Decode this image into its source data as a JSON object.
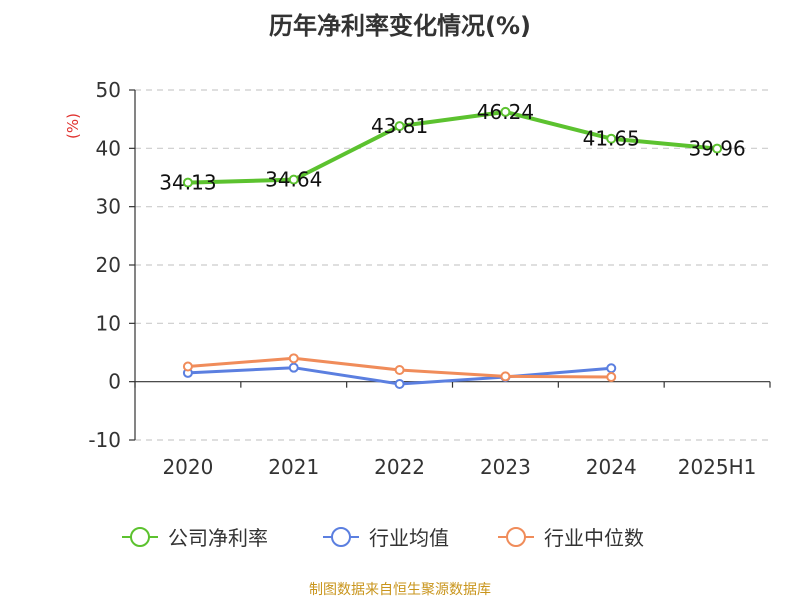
{
  "chart_data": {
    "type": "line",
    "title": "历年净利率变化情况(%)",
    "ylabel": "(%)",
    "xlabel": "",
    "categories": [
      "2020",
      "2021",
      "2022",
      "2023",
      "2024",
      "2025H1"
    ],
    "ylim": [
      -10,
      50
    ],
    "yticks": [
      -10,
      0,
      10,
      20,
      30,
      40,
      50
    ],
    "grid": true,
    "legend": "bottom",
    "series": [
      {
        "name": "公司净利率",
        "color": "#5cc22f",
        "values": [
          34.13,
          34.64,
          43.81,
          46.24,
          41.65,
          39.96
        ],
        "labels": [
          "34.13",
          "34.64",
          "43.81",
          "46.24",
          "41.65",
          "39.96"
        ]
      },
      {
        "name": "行业均值",
        "color": "#5b7fe0",
        "values": [
          1.5,
          2.4,
          -0.4,
          0.8,
          2.3,
          null
        ]
      },
      {
        "name": "行业中位数",
        "color": "#f08c5a",
        "values": [
          2.6,
          4.0,
          2.0,
          0.9,
          0.8,
          null
        ]
      }
    ]
  },
  "source_note": "制图数据来自恒生聚源数据库"
}
